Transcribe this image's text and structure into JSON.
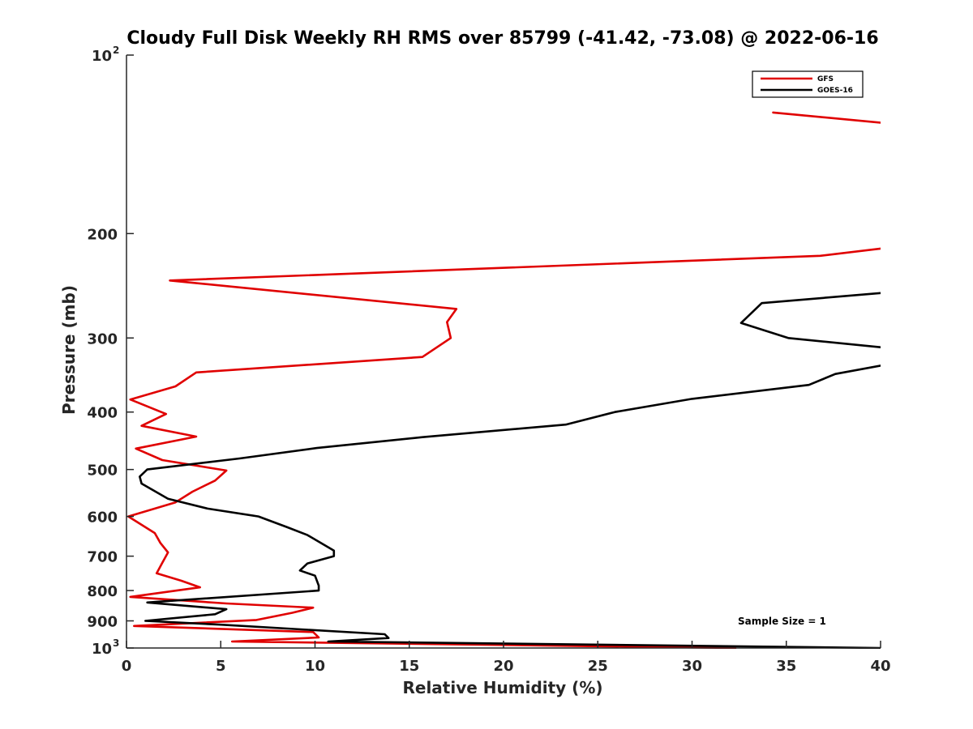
{
  "chart_data": {
    "type": "line",
    "title": "Cloudy Full Disk Weekly RH RMS over 85799 (-41.42, -73.08) @ 2022-06-16",
    "xlabel": "Relative Humidity (%)",
    "ylabel": "Pressure (mb)",
    "xlim": [
      0,
      40
    ],
    "ylim": [
      100,
      1000
    ],
    "y_scale": "log",
    "y_reversed": true,
    "x_ticks": [
      "0",
      "5",
      "10",
      "15",
      "20",
      "25",
      "30",
      "35",
      "40"
    ],
    "y_ticks": [
      {
        "value": 100,
        "base": "10",
        "exp": "2"
      },
      {
        "value": 200,
        "label": "200"
      },
      {
        "value": 300,
        "label": "300"
      },
      {
        "value": 400,
        "label": "400"
      },
      {
        "value": 500,
        "label": "500"
      },
      {
        "value": 600,
        "label": "600"
      },
      {
        "value": 700,
        "label": "700"
      },
      {
        "value": 800,
        "label": "800"
      },
      {
        "value": 900,
        "label": "900"
      },
      {
        "value": 1000,
        "base": "10",
        "exp": "3"
      }
    ],
    "legend_position": "top-right",
    "annotation": "Sample Size = 1",
    "series": [
      {
        "name": "GFS",
        "color": "#e00000",
        "segments": [
          [
            [
              34.3,
              125
            ],
            [
              40.0,
              130
            ]
          ],
          [
            [
              40.0,
              212
            ],
            [
              36.8,
              218
            ],
            [
              2.3,
              240
            ],
            [
              17.5,
              268
            ],
            [
              17.0,
              282
            ],
            [
              17.2,
              300
            ],
            [
              15.7,
              323
            ],
            [
              3.7,
              343
            ],
            [
              2.6,
              362
            ],
            [
              0.2,
              381
            ],
            [
              2.1,
              403
            ],
            [
              0.8,
              422
            ],
            [
              3.7,
              440
            ],
            [
              0.5,
              461
            ],
            [
              1.9,
              482
            ],
            [
              5.3,
              502
            ],
            [
              4.7,
              522
            ],
            [
              3.5,
              545
            ],
            [
              2.6,
              568
            ],
            [
              0.1,
              600
            ],
            [
              1.5,
              640
            ],
            [
              1.8,
              665
            ],
            [
              2.2,
              690
            ],
            [
              1.9,
              718
            ],
            [
              1.6,
              748
            ],
            [
              2.9,
              770
            ],
            [
              3.9,
              790
            ],
            [
              0.2,
              820
            ],
            [
              5.3,
              841
            ],
            [
              9.9,
              855
            ],
            [
              8.8,
              872
            ],
            [
              6.9,
              897
            ],
            [
              0.4,
              918
            ],
            [
              9.9,
              940
            ],
            [
              10.2,
              960
            ],
            [
              5.6,
              975
            ],
            [
              32.3,
              1000
            ]
          ]
        ]
      },
      {
        "name": "GOES-16",
        "color": "#000000",
        "segments": [
          [
            [
              40.0,
              252
            ],
            [
              33.7,
              262
            ],
            [
              32.6,
              283
            ],
            [
              35.1,
              300
            ],
            [
              40.0,
              311
            ]
          ],
          [
            [
              40.0,
              334
            ],
            [
              37.6,
              345
            ],
            [
              36.2,
              360
            ],
            [
              30.0,
              380
            ],
            [
              25.9,
              400
            ],
            [
              23.3,
              420
            ],
            [
              15.7,
              441
            ],
            [
              10.1,
              460
            ],
            [
              6.0,
              479
            ],
            [
              1.1,
              500
            ],
            [
              0.7,
              514
            ],
            [
              0.8,
              528
            ],
            [
              2.2,
              560
            ],
            [
              4.3,
              582
            ],
            [
              7.0,
              600
            ],
            [
              8.5,
              625
            ],
            [
              9.6,
              645
            ],
            [
              11.0,
              685
            ],
            [
              11.0,
              700
            ],
            [
              9.6,
              720
            ],
            [
              9.2,
              740
            ],
            [
              10.0,
              755
            ],
            [
              10.2,
              785
            ],
            [
              10.2,
              800
            ],
            [
              1.1,
              838
            ],
            [
              5.3,
              860
            ],
            [
              4.7,
              877
            ],
            [
              1.0,
              900
            ],
            [
              4.9,
              913
            ],
            [
              13.7,
              948
            ],
            [
              13.9,
              962
            ],
            [
              10.7,
              975
            ],
            [
              40.0,
              1000
            ]
          ]
        ]
      }
    ]
  }
}
